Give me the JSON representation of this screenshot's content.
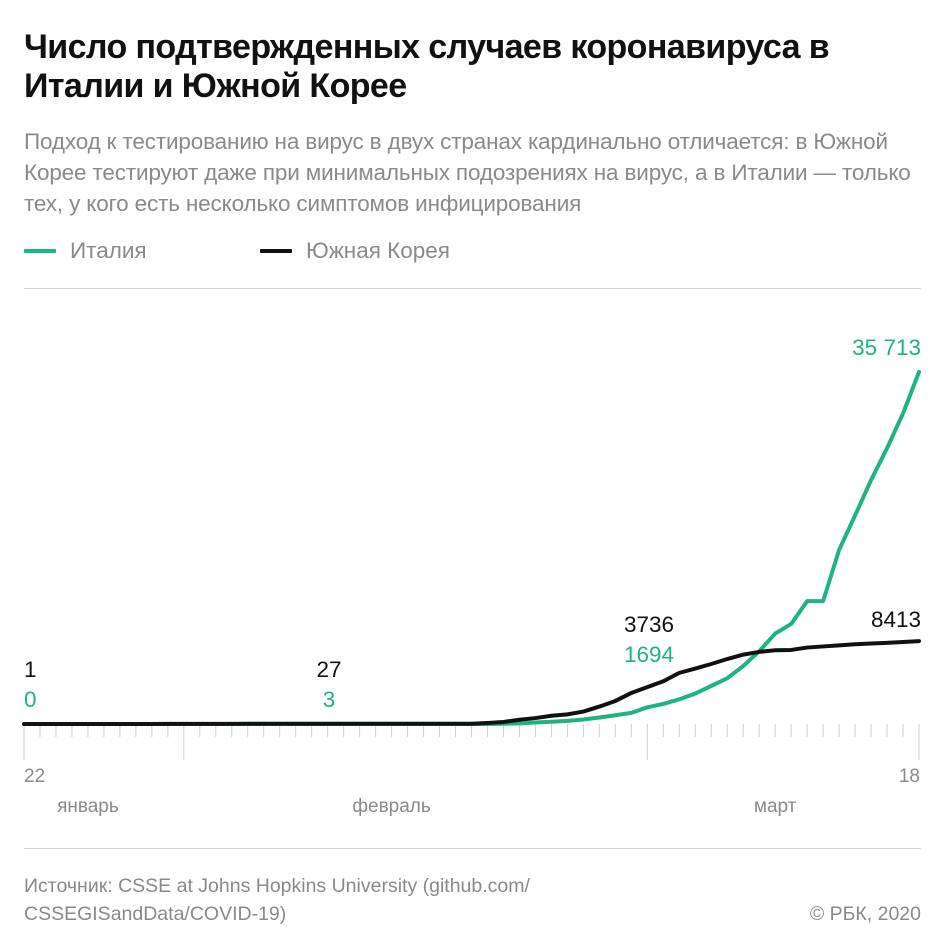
{
  "header": {
    "title": "Число подтвержденных случаев коронавируса в Италии и Южной Корее",
    "subtitle": "Подход к тестированию на вирус в двух странах кардинально отличается: в Южной Корее тестируют даже при минимальных подозрениях на вирус, а в Италии — только тех, у кого есть несколько симптомов инфицирования"
  },
  "legend": {
    "italy_label": "Италия",
    "korea_label": "Южная Корея"
  },
  "footer": {
    "source": "Источник: CSSE at Johns Hopkins University (github.com/ CSSEGISandData/COVID-19)",
    "copyright": "© РБК, 2020"
  },
  "colors": {
    "italy": "#1db384",
    "korea": "#111111",
    "axis": "#d0d0d0",
    "text_muted": "#8a8a8a"
  },
  "chart_data": {
    "type": "line",
    "title": "Число подтвержденных случаев коронавируса в Италии и Южной Корее",
    "x_start": "2020-01-22",
    "x_end": "2020-03-18",
    "ylim": [
      0,
      40000
    ],
    "grid": false,
    "legend_position": "top-left",
    "x_tick_labels": [
      {
        "date": "2020-01-22",
        "label": "22"
      },
      {
        "date": "2020-03-18",
        "label": "18"
      }
    ],
    "month_labels": [
      {
        "date": "2020-01-26",
        "label": "январь"
      },
      {
        "date": "2020-02-14",
        "label": "февраль"
      },
      {
        "date": "2020-03-09",
        "label": "март"
      }
    ],
    "month_ticks": [
      "2020-02-01",
      "2020-03-01"
    ],
    "series": [
      {
        "name": "Италия",
        "color": "#1db384",
        "points": [
          [
            "2020-01-22",
            0
          ],
          [
            "2020-01-30",
            0
          ],
          [
            "2020-01-31",
            2
          ],
          [
            "2020-02-06",
            3
          ],
          [
            "2020-02-07",
            3
          ],
          [
            "2020-02-20",
            3
          ],
          [
            "2020-02-21",
            20
          ],
          [
            "2020-02-22",
            62
          ],
          [
            "2020-02-23",
            155
          ],
          [
            "2020-02-24",
            229
          ],
          [
            "2020-02-25",
            322
          ],
          [
            "2020-02-26",
            453
          ],
          [
            "2020-02-27",
            655
          ],
          [
            "2020-02-28",
            888
          ],
          [
            "2020-02-29",
            1128
          ],
          [
            "2020-03-01",
            1694
          ],
          [
            "2020-03-02",
            2036
          ],
          [
            "2020-03-03",
            2502
          ],
          [
            "2020-03-04",
            3089
          ],
          [
            "2020-03-05",
            3858
          ],
          [
            "2020-03-06",
            4636
          ],
          [
            "2020-03-07",
            5883
          ],
          [
            "2020-03-08",
            7375
          ],
          [
            "2020-03-09",
            9172
          ],
          [
            "2020-03-10",
            10149
          ],
          [
            "2020-03-11",
            12462
          ],
          [
            "2020-03-12",
            12462
          ],
          [
            "2020-03-13",
            17660
          ],
          [
            "2020-03-14",
            21157
          ],
          [
            "2020-03-15",
            24747
          ],
          [
            "2020-03-16",
            27980
          ],
          [
            "2020-03-17",
            31506
          ],
          [
            "2020-03-18",
            35713
          ]
        ]
      },
      {
        "name": "Южная Корея",
        "color": "#111111",
        "points": [
          [
            "2020-01-22",
            1
          ],
          [
            "2020-01-23",
            1
          ],
          [
            "2020-01-24",
            2
          ],
          [
            "2020-01-25",
            2
          ],
          [
            "2020-01-26",
            3
          ],
          [
            "2020-01-27",
            4
          ],
          [
            "2020-01-28",
            4
          ],
          [
            "2020-01-29",
            4
          ],
          [
            "2020-01-30",
            4
          ],
          [
            "2020-01-31",
            11
          ],
          [
            "2020-02-01",
            12
          ],
          [
            "2020-02-02",
            15
          ],
          [
            "2020-02-03",
            15
          ],
          [
            "2020-02-04",
            16
          ],
          [
            "2020-02-05",
            19
          ],
          [
            "2020-02-06",
            23
          ],
          [
            "2020-02-07",
            24
          ],
          [
            "2020-02-08",
            24
          ],
          [
            "2020-02-09",
            25
          ],
          [
            "2020-02-10",
            27
          ],
          [
            "2020-02-11",
            28
          ],
          [
            "2020-02-12",
            28
          ],
          [
            "2020-02-13",
            28
          ],
          [
            "2020-02-14",
            28
          ],
          [
            "2020-02-15",
            28
          ],
          [
            "2020-02-16",
            29
          ],
          [
            "2020-02-17",
            30
          ],
          [
            "2020-02-18",
            31
          ],
          [
            "2020-02-19",
            31
          ],
          [
            "2020-02-20",
            104
          ],
          [
            "2020-02-21",
            204
          ],
          [
            "2020-02-22",
            433
          ],
          [
            "2020-02-23",
            602
          ],
          [
            "2020-02-24",
            833
          ],
          [
            "2020-02-25",
            977
          ],
          [
            "2020-02-26",
            1261
          ],
          [
            "2020-02-27",
            1766
          ],
          [
            "2020-02-28",
            2337
          ],
          [
            "2020-02-29",
            3150
          ],
          [
            "2020-03-01",
            3736
          ],
          [
            "2020-03-02",
            4335
          ],
          [
            "2020-03-03",
            5186
          ],
          [
            "2020-03-04",
            5621
          ],
          [
            "2020-03-05",
            6088
          ],
          [
            "2020-03-06",
            6593
          ],
          [
            "2020-03-07",
            7041
          ],
          [
            "2020-03-08",
            7314
          ],
          [
            "2020-03-09",
            7478
          ],
          [
            "2020-03-10",
            7513
          ],
          [
            "2020-03-11",
            7755
          ],
          [
            "2020-03-12",
            7869
          ],
          [
            "2020-03-13",
            7979
          ],
          [
            "2020-03-14",
            8086
          ],
          [
            "2020-03-15",
            8162
          ],
          [
            "2020-03-16",
            8236
          ],
          [
            "2020-03-17",
            8320
          ],
          [
            "2020-03-18",
            8413
          ]
        ]
      }
    ],
    "annotations": [
      {
        "series": "Южная Корея",
        "date": "2020-01-22",
        "label": "1"
      },
      {
        "series": "Италия",
        "date": "2020-01-22",
        "label": "0"
      },
      {
        "series": "Южная Корея",
        "date": "2020-02-10",
        "label": "27"
      },
      {
        "series": "Италия",
        "date": "2020-02-10",
        "label": "3"
      },
      {
        "series": "Южная Корея",
        "date": "2020-03-01",
        "label": "3736"
      },
      {
        "series": "Италия",
        "date": "2020-03-01",
        "label": "1694"
      },
      {
        "series": "Южная Корея",
        "date": "2020-03-18",
        "label": "8413"
      },
      {
        "series": "Италия",
        "date": "2020-03-18",
        "label": "35 713"
      }
    ]
  }
}
